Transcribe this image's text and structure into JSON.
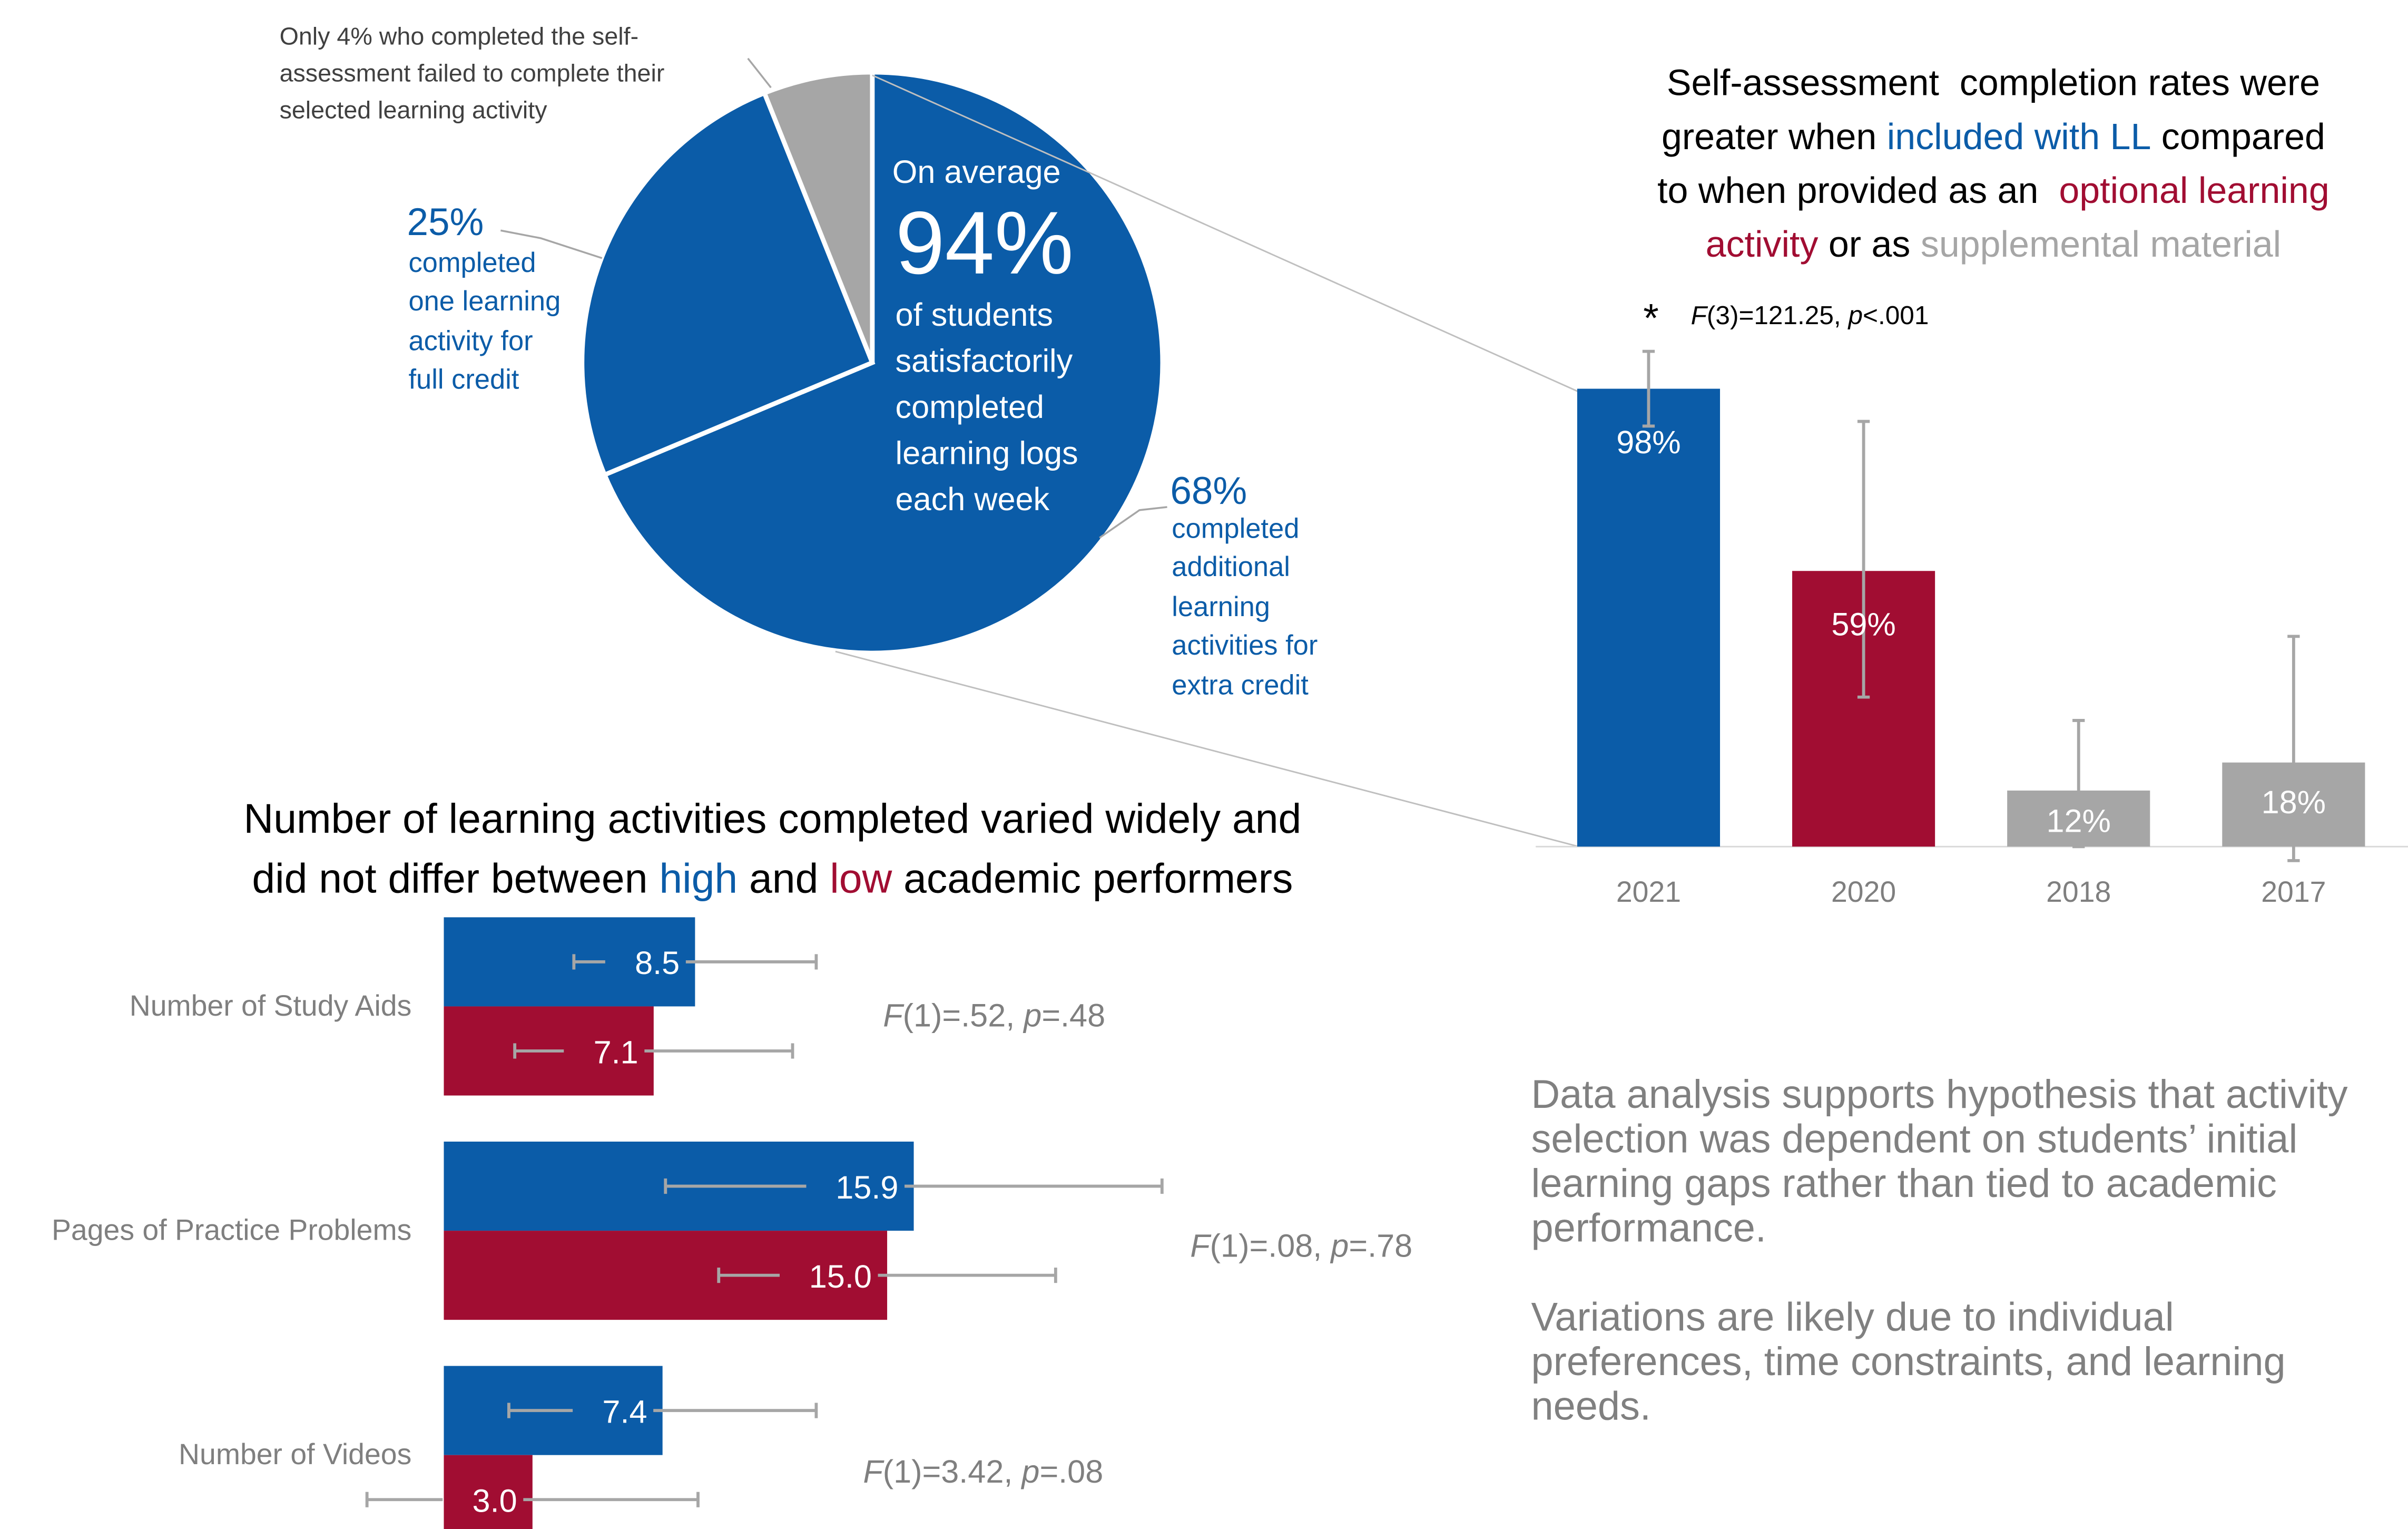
{
  "pie": {
    "note_lines": [
      "Only 4% who completed the self-",
      "assessment failed to complete their",
      "selected learning activity"
    ],
    "center_lines": {
      "avg": "On average",
      "pct": "94%",
      "rest": [
        "of students",
        "satisfactorily",
        "completed",
        "learning logs",
        "each week"
      ]
    },
    "left_label": {
      "pct": "25%",
      "lines": [
        "completed",
        "one learning",
        "activity for",
        "full credit"
      ]
    },
    "right_label": {
      "pct": "68%",
      "lines": [
        "completed",
        "additional",
        "learning",
        "activities for",
        "extra credit"
      ]
    },
    "colors": {
      "main": "#0b5ca8",
      "minor": "#a6a6a6"
    }
  },
  "bar_title": {
    "lines": [
      [
        {
          "text": "Self-assessment  completion rates were",
          "color": "#000000"
        }
      ],
      [
        {
          "text": "greater when ",
          "color": "#000000"
        },
        {
          "text": "included with LL",
          "color": "#0b5ca8"
        },
        {
          "text": " compared",
          "color": "#000000"
        }
      ],
      [
        {
          "text": "to when provided as an  ",
          "color": "#000000"
        },
        {
          "text": "optional learning",
          "color": "#a10d32"
        }
      ],
      [
        {
          "text": "activity",
          "color": "#a10d32"
        },
        {
          "text": " or as ",
          "color": "#000000"
        },
        {
          "text": "supplemental material",
          "color": "#a6a6a6"
        }
      ]
    ]
  },
  "bar_stat": {
    "star": "*",
    "f": "F",
    "mid": "(3)=121.25, ",
    "p": "p",
    "end": "<.001"
  },
  "hbar_title": {
    "lines": [
      [
        {
          "text": "Number of learning activities completed varied widely and",
          "color": "#000000"
        }
      ],
      [
        {
          "text": "did not differ between ",
          "color": "#000000"
        },
        {
          "text": "high",
          "color": "#0b5ca8"
        },
        {
          "text": " and ",
          "color": "#000000"
        },
        {
          "text": "low",
          "color": "#a10d32"
        },
        {
          "text": " academic performers",
          "color": "#000000"
        }
      ]
    ]
  },
  "hbar_stats": [
    {
      "f": "F",
      "mid": "(1)=.52, ",
      "p": "p",
      "end": "=.48"
    },
    {
      "f": "F",
      "mid": "(1)=.08, ",
      "p": "p",
      "end": "=.78"
    },
    {
      "f": "F",
      "mid": "(1)=3.42, ",
      "p": "p",
      "end": "=.08"
    }
  ],
  "paragraphs": [
    [
      "Data analysis supports hypothesis that activity",
      "selection was dependent on students’ initial",
      "learning gaps rather than tied to academic",
      "performance."
    ],
    [
      "Variations are likely due to individual",
      "preferences, time constraints, and learning",
      "needs."
    ]
  ],
  "chart_data": [
    {
      "type": "pie",
      "values": [
        68,
        25,
        6
      ],
      "labels": [
        "68%",
        "25%",
        ""
      ],
      "colors": [
        "#0b5ca8",
        "#0b5ca8",
        "#a6a6a6"
      ]
    },
    {
      "type": "bar",
      "categories": [
        "2021",
        "2020",
        "2018",
        "2017"
      ],
      "values": [
        98,
        59,
        12,
        18
      ],
      "labels": [
        "98%",
        "59%",
        "12%",
        "18%"
      ],
      "error_low": [
        90,
        32,
        0,
        -3
      ],
      "error_high": [
        106,
        91,
        27,
        45
      ],
      "colors": [
        "#0b5ca8",
        "#a10d32",
        "#a6a6a6",
        "#a6a6a6"
      ],
      "ylim": [
        0,
        110
      ]
    },
    {
      "type": "bar",
      "orientation": "horizontal",
      "categories": [
        "Number of Study Aids",
        "Pages of Practice Problems",
        "Number of Videos"
      ],
      "series": [
        {
          "name": "high",
          "color": "#0b5ca8",
          "values": [
            8.5,
            15.9,
            7.4
          ],
          "labels": [
            "8.5",
            "15.9",
            "7.4"
          ],
          "error_low": [
            4.4,
            7.5,
            2.2
          ],
          "error_high": [
            12.6,
            24.3,
            12.6
          ]
        },
        {
          "name": "low",
          "color": "#a10d32",
          "values": [
            7.1,
            15.0,
            3.0
          ],
          "labels": [
            "7.1",
            "15.0",
            "3.0"
          ],
          "error_low": [
            2.4,
            9.3,
            -2.6
          ],
          "error_high": [
            11.8,
            20.7,
            8.6
          ]
        }
      ],
      "xlim": [
        0,
        30
      ]
    }
  ]
}
